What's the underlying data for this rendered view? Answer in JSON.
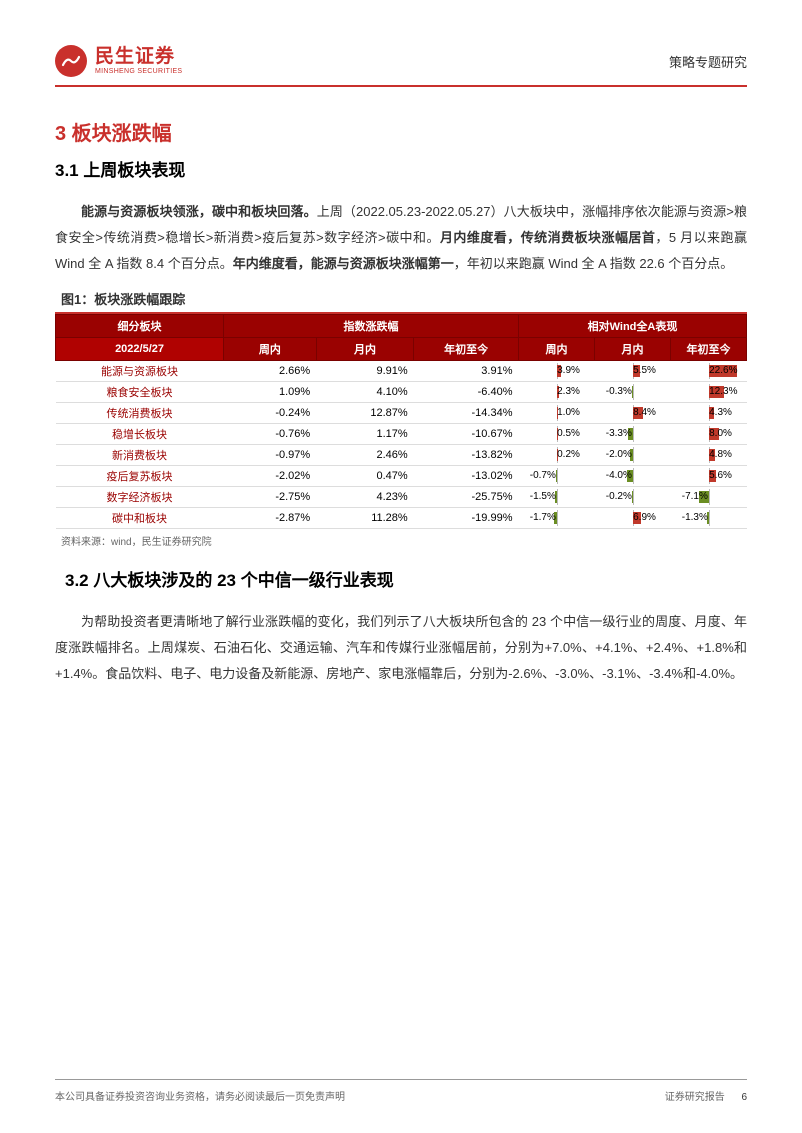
{
  "header": {
    "logo_cn": "民生证券",
    "logo_en": "MINSHENG SECURITIES",
    "right": "策略专题研究"
  },
  "h1": "3 板块涨跌幅",
  "h2a": "3.1 上周板块表现",
  "para1_a": "能源与资源板块领涨，碳中和板块回落。",
  "para1_b": "上周（2022.05.23-2022.05.27）八大板块中，涨幅排序依次能源与资源>粮食安全>传统消费>稳增长>新消费>疫后复苏>数字经济>碳中和。",
  "para1_c": "月内维度看，传统消费板块涨幅居首",
  "para1_d": "，5 月以来跑赢 Wind 全 A 指数 8.4 个百分点。",
  "para1_e": "年内维度看，能源与资源板块涨幅第一",
  "para1_f": "，年初以来跑赢 Wind 全 A 指数 22.6 个百分点。",
  "fig1_title": "图1：板块涨跌幅跟踪",
  "table": {
    "h_group1": "指数涨跌幅",
    "h_group2": "相对Wind全A表现",
    "h_sector": "细分板块",
    "h_date": "2022/5/27",
    "h_week": "周内",
    "h_month": "月内",
    "h_ytd": "年初至今",
    "pos_color": "#c0392b",
    "neg_color": "#6b8e23",
    "max_abs": 25,
    "rows": [
      {
        "name": "能源与资源板块",
        "w": "2.66%",
        "m": "9.91%",
        "y": "3.91%",
        "rw": 3.9,
        "rm": 5.5,
        "ry": 22.6
      },
      {
        "name": "粮食安全板块",
        "w": "1.09%",
        "m": "4.10%",
        "y": "-6.40%",
        "rw": 2.3,
        "rm": -0.3,
        "ry": 12.3
      },
      {
        "name": "传统消费板块",
        "w": "-0.24%",
        "m": "12.87%",
        "y": "-14.34%",
        "rw": 1.0,
        "rm": 8.4,
        "ry": 4.3
      },
      {
        "name": "稳增长板块",
        "w": "-0.76%",
        "m": "1.17%",
        "y": "-10.67%",
        "rw": 0.5,
        "rm": -3.3,
        "ry": 8.0
      },
      {
        "name": "新消费板块",
        "w": "-0.97%",
        "m": "2.46%",
        "y": "-13.82%",
        "rw": 0.2,
        "rm": -2.0,
        "ry": 4.8
      },
      {
        "name": "疫后复苏板块",
        "w": "-2.02%",
        "m": "0.47%",
        "y": "-13.02%",
        "rw": -0.7,
        "rm": -4.0,
        "ry": 5.6
      },
      {
        "name": "数字经济板块",
        "w": "-2.75%",
        "m": "4.23%",
        "y": "-25.75%",
        "rw": -1.5,
        "rm": -0.2,
        "ry": -7.1
      },
      {
        "name": "碳中和板块",
        "w": "-2.87%",
        "m": "11.28%",
        "y": "-19.99%",
        "rw": -1.7,
        "rm": 6.9,
        "ry": -1.3
      }
    ]
  },
  "source": "资料来源：wind，民生证券研究院",
  "h2b": "3.2 八大板块涉及的 23 个中信一级行业表现",
  "para2": "为帮助投资者更清晰地了解行业涨跌幅的变化，我们列示了八大板块所包含的 23 个中信一级行业的周度、月度、年度涨跌幅排名。上周煤炭、石油石化、交通运输、汽车和传媒行业涨幅居前，分别为+7.0%、+4.1%、+2.4%、+1.8%和+1.4%。食品饮料、电子、电力设备及新能源、房地产、家电涨幅靠后，分别为-2.6%、-3.0%、-3.1%、-3.4%和-4.0%。",
  "footer": {
    "left": "本公司具备证券投资咨询业务资格，请务必阅读最后一页免责声明",
    "right": "证券研究报告",
    "page": "6"
  }
}
